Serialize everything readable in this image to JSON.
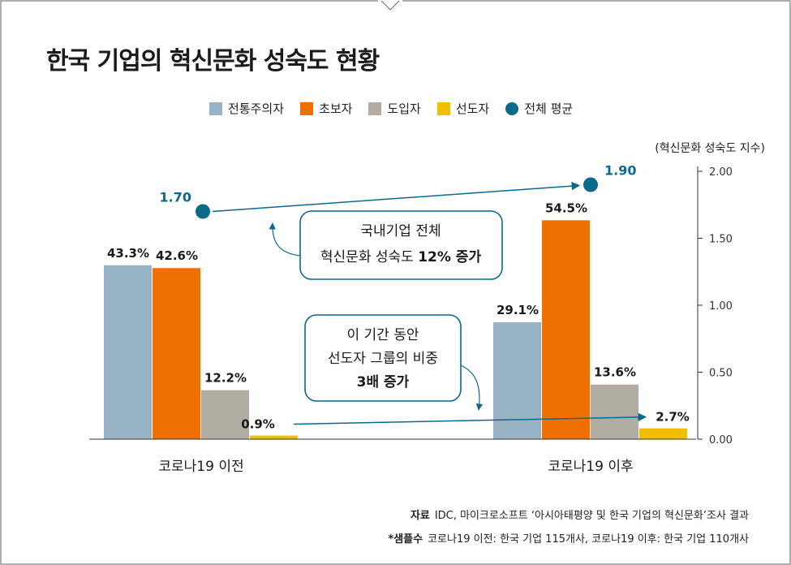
{
  "title": "한국 기업의 혁신문화 성숙도 현황",
  "unit_label": "(혁신문화 성숙도 지수)",
  "callouts": [
    {
      "lines": [
        "국내기업 전체",
        "혁신문화 성숙도 "
      ],
      "bold": "12% 증가"
    },
    {
      "lines": [
        "이 기간 동안",
        "선도자 그룹의 비중"
      ],
      "bold": "3배 증가"
    }
  ],
  "source": {
    "label": "자료",
    "text": "IDC, 마이크로소프트 ‘아시아태평양 및 한국 기업의 혁신문화’조사 결과",
    "sample_label": "*샘플수",
    "sample_text": "코로나19 이전: 한국 기업 115개사, 코로나19 이후: 한국 기업 110개사"
  },
  "colors": {
    "traditional": "#97b3c5",
    "beginner": "#ee7000",
    "adopter": "#b0aca2",
    "leader": "#f0c000",
    "average": "#0a6a8c"
  },
  "chart_data": {
    "type": "bar",
    "categories": [
      "코로나19 이전",
      "코로나19 이후"
    ],
    "series": [
      {
        "name": "전통주의자",
        "values": [
          43.3,
          29.1
        ],
        "labels": [
          "43.3%",
          "29.1%"
        ],
        "color": "#97b3c5"
      },
      {
        "name": "초보자",
        "values": [
          42.6,
          54.5
        ],
        "labels": [
          "42.6%",
          "54.5%"
        ],
        "color": "#ee7000"
      },
      {
        "name": "도입자",
        "values": [
          12.2,
          13.6
        ],
        "labels": [
          "12.2%",
          "13.6%"
        ],
        "color": "#b0aca2"
      },
      {
        "name": "선도자",
        "values": [
          0.9,
          2.7
        ],
        "labels": [
          "0.9%",
          "2.7%"
        ],
        "color": "#f0c000"
      }
    ],
    "average": {
      "name": "전체 평균",
      "values": [
        1.7,
        1.9
      ],
      "labels": [
        "1.70",
        "1.90"
      ],
      "color": "#0a6a8c"
    },
    "right_axis": {
      "ticks": [
        "2.00",
        "1.50",
        "1.00",
        "0.50",
        "0.00"
      ],
      "range": [
        0,
        2
      ]
    },
    "bar_scale_max": 66.7,
    "legend_position": "top",
    "grid": false
  }
}
